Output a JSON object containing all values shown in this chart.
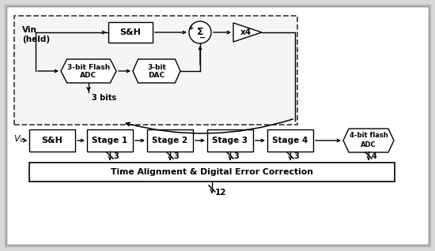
{
  "fig_width": 5.5,
  "fig_height": 3.18,
  "bg_color": "#d8d8d8",
  "box_fc": "#ffffff",
  "box_ec": "#000000",
  "dash_ec": "#444444",
  "tadc_label": "Time Alignment & Digital Error Correction",
  "vin_held": "Vin\n(held)",
  "sh_top": "S&H",
  "sum_sym": "Σ",
  "x4_label": "x4",
  "adc_top_label": "3-bit Flash\nADC",
  "dac_top_label": "3-bit\nDAC",
  "bits_label": "3 bits",
  "bottom_sh": "S&H",
  "stage_labels": [
    "Stage 1",
    "Stage 2",
    "Stage 3",
    "Stage 4"
  ],
  "fadc_label": "4-bit flash\nADC",
  "bit_labels": [
    "3",
    "3",
    "3",
    "3",
    "4"
  ],
  "out_label": "12"
}
